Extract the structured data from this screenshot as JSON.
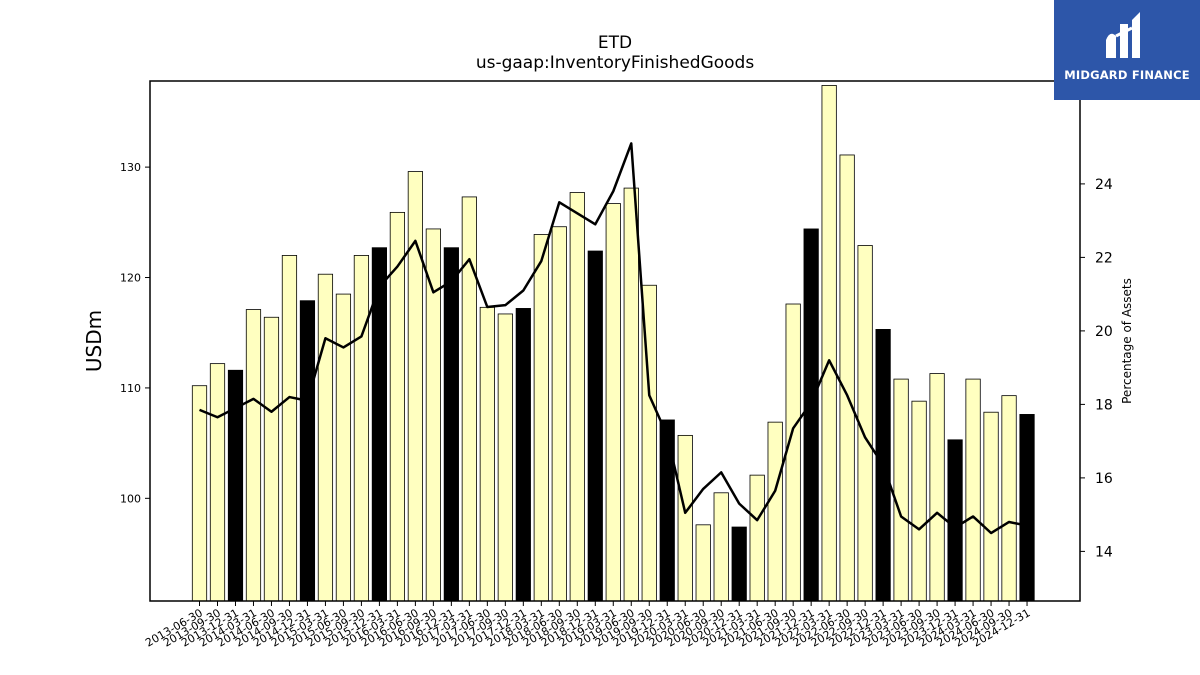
{
  "brand": {
    "name": "MIDGARD FINANCE",
    "bg_color": "#2d56a9"
  },
  "chart_data": {
    "type": "bar",
    "title": "ETD",
    "subtitle": "us-gaap:InventoryFinishedGoods",
    "ylabel": "USDm",
    "y2label": "Percentage of Assets",
    "ylim": [
      90.7,
      137.8
    ],
    "y2lim": [
      12.65,
      26.8
    ],
    "yticks": [
      100,
      110,
      120,
      130
    ],
    "y2ticks": [
      14,
      16,
      18,
      20,
      22,
      24
    ],
    "colors": {
      "bar_quarter": "#ffffc0",
      "bar_year_end": "#000000",
      "line": "#000000",
      "edge": "#000000"
    },
    "categories": [
      "2013-06-30",
      "2013-09-30",
      "2013-12-31",
      "2014-03-31",
      "2014-06-30",
      "2014-09-30",
      "2014-12-31",
      "2015-03-31",
      "2015-06-30",
      "2015-09-30",
      "2015-12-31",
      "2016-03-31",
      "2016-06-30",
      "2016-09-30",
      "2016-12-31",
      "2017-03-31",
      "2017-06-30",
      "2017-09-30",
      "2017-12-31",
      "2018-03-31",
      "2018-06-30",
      "2018-09-30",
      "2018-12-31",
      "2019-03-31",
      "2019-06-30",
      "2019-09-30",
      "2019-12-31",
      "2020-03-31",
      "2020-06-30",
      "2020-09-30",
      "2020-12-31",
      "2021-03-31",
      "2021-06-30",
      "2021-09-30",
      "2021-12-31",
      "2022-03-31",
      "2022-06-30",
      "2022-09-30",
      "2022-12-31",
      "2023-03-31",
      "2023-06-30",
      "2023-09-30",
      "2023-12-31",
      "2024-03-31",
      "2024-06-30",
      "2024-09-30",
      "2024-12-31"
    ],
    "series": [
      {
        "type": "bar",
        "axis": "left",
        "values": [
          110.2,
          112.2,
          111.6,
          117.1,
          116.4,
          122.0,
          117.9,
          120.3,
          118.5,
          122.0,
          122.7,
          125.9,
          129.6,
          124.4,
          122.7,
          127.3,
          117.3,
          116.7,
          117.2,
          123.9,
          124.6,
          127.7,
          122.4,
          126.7,
          128.1,
          119.3,
          107.1,
          105.7,
          97.6,
          100.5,
          97.4,
          102.1,
          106.9,
          117.6,
          124.4,
          137.4,
          131.1,
          122.9,
          115.3,
          110.8,
          108.8,
          111.3,
          105.3,
          110.8,
          107.8,
          109.3,
          107.6
        ],
        "year_end": [
          false,
          false,
          true,
          false,
          false,
          false,
          true,
          false,
          false,
          false,
          true,
          false,
          false,
          false,
          true,
          false,
          false,
          false,
          true,
          false,
          false,
          false,
          true,
          false,
          false,
          false,
          true,
          false,
          false,
          false,
          true,
          false,
          false,
          false,
          true,
          false,
          false,
          false,
          true,
          false,
          false,
          false,
          true,
          false,
          false,
          false,
          true
        ]
      },
      {
        "type": "line",
        "axis": "right",
        "values": [
          17.85,
          17.65,
          17.9,
          18.15,
          17.8,
          18.2,
          18.1,
          19.8,
          19.55,
          19.85,
          21.2,
          21.75,
          22.45,
          21.05,
          21.35,
          21.95,
          20.65,
          20.7,
          21.1,
          21.9,
          23.5,
          23.2,
          22.9,
          23.8,
          25.1,
          18.25,
          17.15,
          15.05,
          15.7,
          16.15,
          15.3,
          14.85,
          15.65,
          17.35,
          18.05,
          19.2,
          18.25,
          17.1,
          16.35,
          14.95,
          14.6,
          15.05,
          14.65,
          14.95,
          14.5,
          14.8,
          14.7
        ]
      }
    ]
  }
}
